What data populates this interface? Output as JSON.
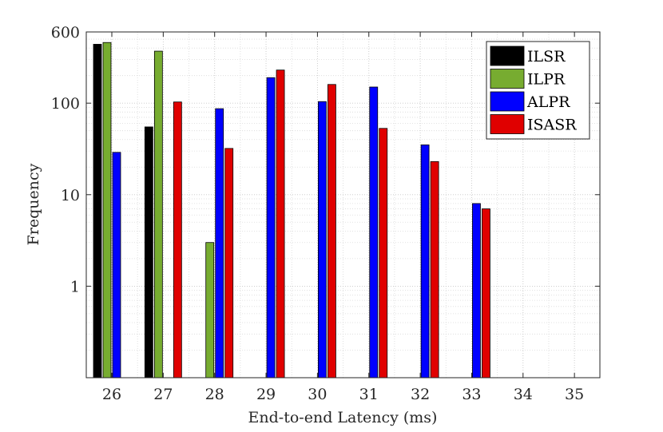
{
  "chart_data": {
    "type": "bar",
    "xlabel": "End-to-end Latency (ms)",
    "ylabel": "Frequency",
    "y_scale": "log",
    "ylim": [
      0.1,
      600
    ],
    "y_ticks": [
      {
        "value": 1,
        "label": "1"
      },
      {
        "value": 10,
        "label": "10"
      },
      {
        "value": 100,
        "label": "100"
      },
      {
        "value": 600,
        "label": "600"
      }
    ],
    "categories": [
      "26",
      "27",
      "28",
      "29",
      "30",
      "31",
      "32",
      "33",
      "34",
      "35"
    ],
    "grid": true,
    "legend_position": "top-right",
    "series": [
      {
        "name": "ILSR",
        "color": "#000000",
        "values": [
          440,
          55,
          0,
          0,
          0,
          0,
          0,
          0,
          0,
          0
        ]
      },
      {
        "name": "ILPR",
        "color": "#77AC30",
        "values": [
          460,
          370,
          3,
          0,
          0,
          0,
          0,
          0,
          0,
          0
        ]
      },
      {
        "name": "ALPR",
        "color": "#0000FF",
        "values": [
          29,
          0,
          87,
          190,
          104,
          150,
          35,
          8,
          0,
          0
        ]
      },
      {
        "name": "ISASR",
        "color": "#E00000",
        "values": [
          0,
          103,
          32,
          230,
          160,
          53,
          23,
          7,
          0,
          0
        ]
      }
    ]
  }
}
